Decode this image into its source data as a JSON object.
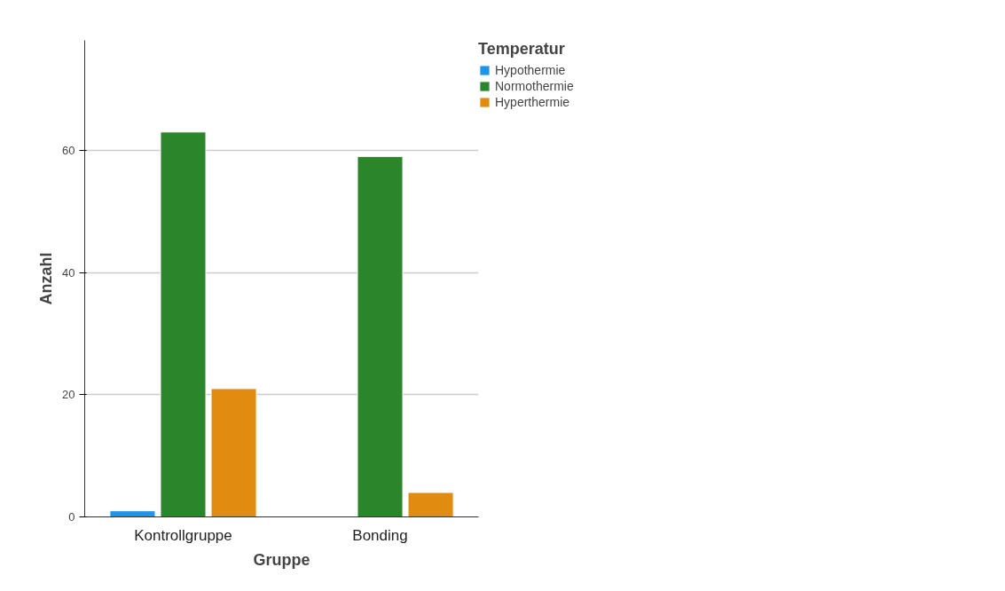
{
  "chart_data": {
    "type": "bar",
    "xlabel": "Gruppe",
    "ylabel": "Anzahl",
    "legend_title": "Temperatur",
    "categories": [
      "Kontrollgruppe",
      "Bonding"
    ],
    "series": [
      {
        "name": "Hypothermie",
        "color": "#1f94e8",
        "values": [
          1,
          null
        ]
      },
      {
        "name": "Normothermie",
        "color": "#2b862b",
        "values": [
          63,
          59
        ]
      },
      {
        "name": "Hyperthermie",
        "color": "#e18c11",
        "values": [
          21,
          4
        ]
      }
    ],
    "ylim": [
      0,
      78
    ],
    "yticks": [
      0,
      20,
      40,
      60
    ],
    "grid": "y",
    "legend": "top right"
  }
}
